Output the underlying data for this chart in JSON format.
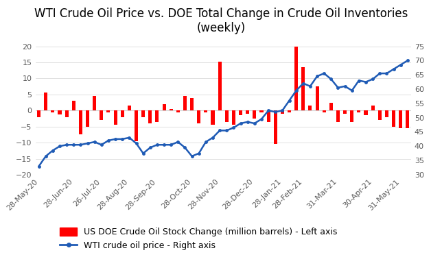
{
  "title": "WTI Crude Oil Price vs. DOE Total Change in Crude Oil Inventories\n(weekly)",
  "bar_label": "US DOE Crude Oil Stock Change (million barrels) - Left axis",
  "line_label": "WTI crude oil price - Right axis",
  "bar_color": "#FF0000",
  "line_color": "#1F5BB5",
  "left_ylim": [
    -20,
    20
  ],
  "right_ylim": [
    30,
    75
  ],
  "left_yticks": [
    -20,
    -15,
    -10,
    -5,
    0,
    5,
    10,
    15,
    20
  ],
  "right_yticks": [
    30,
    35,
    40,
    45,
    50,
    55,
    60,
    65,
    70,
    75
  ],
  "bar_values": [
    -2.0,
    5.7,
    -0.5,
    -1.2,
    -2.0,
    3.0,
    -7.5,
    -5.0,
    4.5,
    -3.0,
    -0.5,
    -4.5,
    -2.0,
    1.5,
    -9.5,
    -2.0,
    -4.0,
    -3.5,
    2.0,
    0.5,
    -0.5,
    4.5,
    4.0,
    -4.0,
    -0.5,
    -4.5,
    15.2,
    -3.5,
    -4.5,
    -1.5,
    -1.0,
    -2.5,
    -0.5,
    -3.5,
    -10.5,
    -1.0,
    -0.5,
    20.0,
    13.5,
    1.5,
    7.5,
    -0.5,
    2.5,
    -3.5,
    -1.0,
    -3.5,
    -0.5,
    -1.5,
    1.5,
    -3.0,
    -2.0,
    -5.0,
    -5.5,
    -5.5
  ],
  "line_values": [
    33.0,
    36.5,
    38.5,
    40.0,
    40.5,
    40.5,
    40.5,
    41.0,
    41.5,
    40.5,
    42.0,
    42.5,
    42.5,
    43.0,
    41.0,
    37.5,
    39.5,
    40.5,
    40.5,
    40.5,
    41.5,
    39.5,
    36.5,
    37.5,
    41.5,
    43.0,
    45.5,
    45.5,
    46.5,
    48.0,
    48.5,
    48.0,
    49.5,
    52.5,
    52.0,
    52.5,
    56.0,
    59.5,
    62.0,
    61.0,
    64.5,
    65.5,
    63.5,
    60.5,
    61.0,
    59.5,
    63.0,
    62.5,
    63.5,
    65.5,
    65.5,
    67.0,
    68.5,
    70.0
  ],
  "xtick_labels": [
    "28-May-20",
    "28-Jun-20",
    "26-Jul-20",
    "28-Aug-20",
    "28-Sep-20",
    "28-Oct-20",
    "28-Nov-20",
    "28-Dec-20",
    "28-Jan-21",
    "28-Feb-21",
    "31-Mar-21",
    "30-Apr-21",
    "31-May-21"
  ],
  "xtick_positions": [
    0,
    5,
    9,
    13,
    17,
    22,
    26,
    31,
    35,
    38,
    43,
    48,
    52
  ],
  "background_color": "#FFFFFF",
  "title_fontsize": 12,
  "tick_fontsize": 8,
  "legend_fontsize": 9
}
